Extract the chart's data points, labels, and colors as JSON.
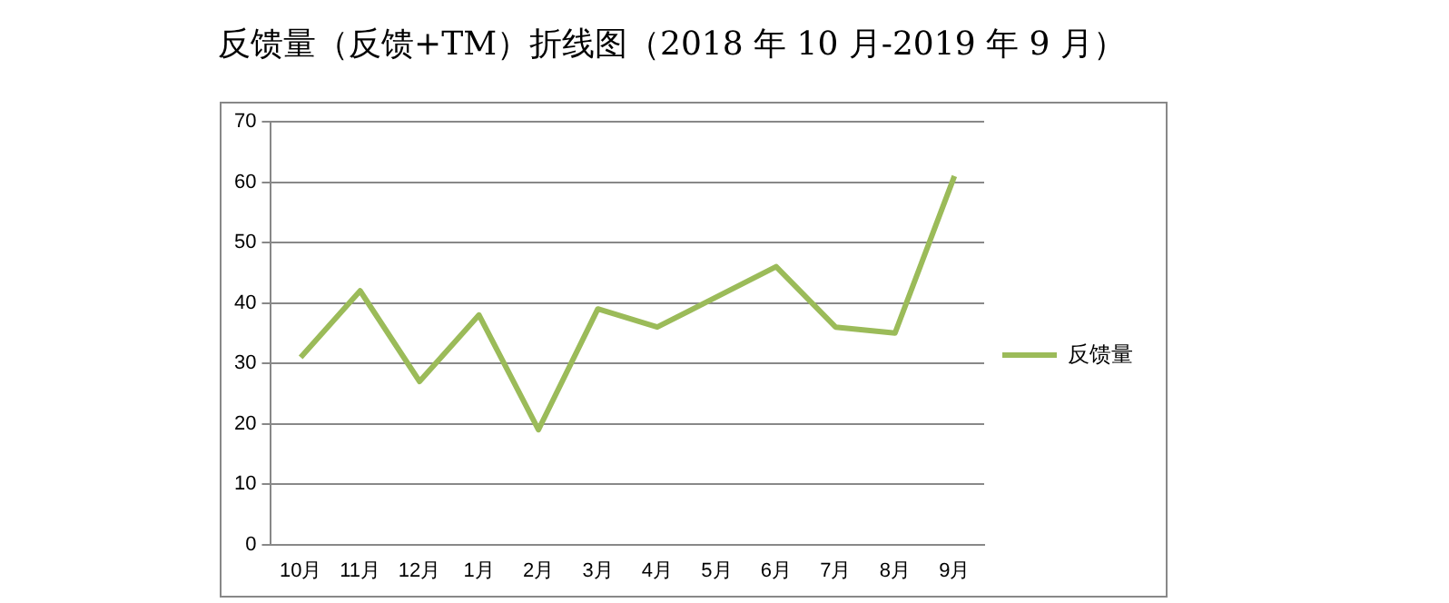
{
  "chart_data": {
    "type": "line",
    "title": "反馈量（反馈+TM）折线图（2018 年 10 月-2019 年 9 月）",
    "categories": [
      "10月",
      "11月",
      "12月",
      "1月",
      "2月",
      "3月",
      "4月",
      "5月",
      "6月",
      "7月",
      "8月",
      "9月"
    ],
    "series": [
      {
        "name": "反馈量",
        "color": "#9bbb59",
        "values": [
          31,
          42,
          27,
          38,
          19,
          39,
          36,
          41,
          46,
          36,
          35,
          61
        ]
      }
    ],
    "ylim": [
      0,
      70
    ],
    "yticks": [
      0,
      10,
      20,
      30,
      40,
      50,
      60,
      70
    ],
    "grid": "y",
    "legend": "right",
    "marker": "none",
    "line_style": "solid"
  }
}
